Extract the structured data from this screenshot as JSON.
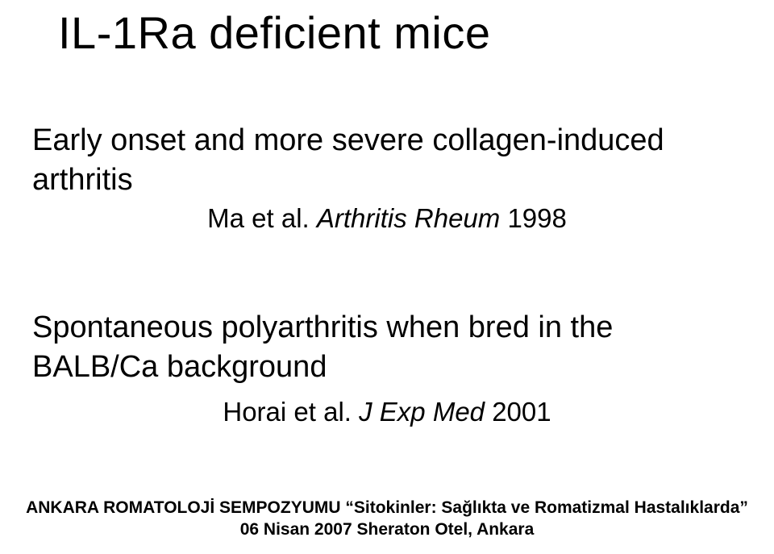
{
  "title": "IL-1Ra deficient mice",
  "body1": "Early onset and more severe collagen-induced arthritis",
  "ref1_author": "Ma et al. ",
  "ref1_journal": "Arthritis Rheum ",
  "ref1_year": "1998",
  "body2": "Spontaneous polyarthritis when bred in the BALB/Ca background",
  "ref2_author": "Horai et al. ",
  "ref2_journal": "J Exp Med ",
  "ref2_year": "2001",
  "footer_line1": "ANKARA ROMATOLOJİ SEMPOZYUMU “Sitokinler: Sağlıkta ve Romatizmal Hastalıklarda”",
  "footer_line2": "06 Nisan 2007 Sheraton Otel, Ankara",
  "colors": {
    "background": "#ffffff",
    "text": "#000000"
  },
  "fonts": {
    "family": "Arial",
    "title_size": 56,
    "body_size": 38,
    "ref_size": 33,
    "footer_size": 21
  }
}
